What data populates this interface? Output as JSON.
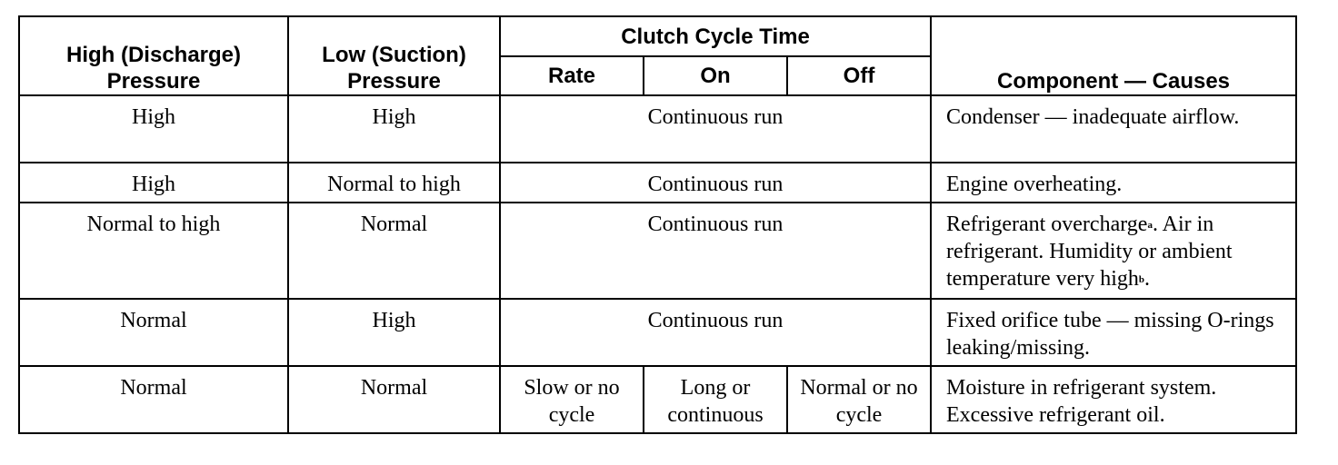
{
  "headers": {
    "high_pressure": "High (Discharge) Pressure",
    "low_pressure": "Low (Suction) Pressure",
    "clutch_cycle_time": "Clutch Cycle Time",
    "rate": "Rate",
    "on": "On",
    "off": "Off",
    "component_causes": "Component — Causes"
  },
  "rows": [
    {
      "high": "High",
      "low": "High",
      "clutch": "Continuous run",
      "cause": "Condenser — inadequate airflow."
    },
    {
      "high": "High",
      "low": "Normal to high",
      "clutch": "Continuous run",
      "cause": "Engine overheating."
    },
    {
      "high": "Normal to high",
      "low": "Normal",
      "clutch": "Continuous run",
      "cause_part1": "Refrigerant overcharge",
      "cause_sup1": "a",
      "cause_part2": ". Air in refrigerant. Humidity or ambient temperature very high",
      "cause_sup2": "b",
      "cause_part3": "."
    },
    {
      "high": "Normal",
      "low": "High",
      "clutch": "Continuous run",
      "cause": "Fixed orifice tube — missing O-rings leaking/missing."
    },
    {
      "high": "Normal",
      "low": "Normal",
      "rate": "Slow or no cycle",
      "on": "Long or continuous",
      "off": "Normal or no cycle",
      "cause": "Moisture in refrigerant system. Excessive refrigerant oil."
    }
  ]
}
